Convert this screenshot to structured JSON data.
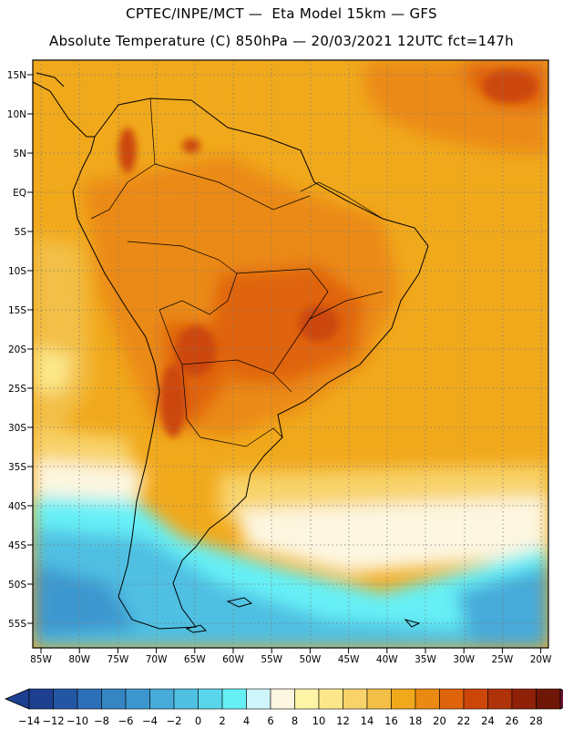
{
  "header": {
    "line1": "CPTEC/INPE/MCT —  Eta Model 15km — GFS",
    "line2": "Absolute Temperature (C) 850hPa — 20/03/2021 12UTC fct=147h"
  },
  "map": {
    "lat_labels": [
      "15N",
      "10N",
      "5N",
      "EQ",
      "5S",
      "10S",
      "15S",
      "20S",
      "25S",
      "30S",
      "35S",
      "40S",
      "45S",
      "50S",
      "55S"
    ],
    "lon_labels": [
      "85W",
      "80W",
      "75W",
      "70W",
      "65W",
      "60W",
      "55W",
      "50W",
      "45W",
      "40W",
      "35W",
      "30W",
      "25W",
      "20W"
    ]
  },
  "colorbar": {
    "labels": [
      "-14",
      "-12",
      "-10",
      "-8",
      "-6",
      "-4",
      "-2",
      "0",
      "2",
      "4",
      "6",
      "8",
      "10",
      "12",
      "14",
      "16",
      "18",
      "20",
      "22",
      "24",
      "26",
      "28"
    ],
    "colors": [
      "#1d3f8f",
      "#2457a3",
      "#2d6fb6",
      "#3585c3",
      "#3d97cf",
      "#47aad9",
      "#4fbfe2",
      "#5ad6ec",
      "#66f0f6",
      "#cff6fb",
      "#fdf6e0",
      "#fdf4a6",
      "#fce88a",
      "#f8d36a",
      "#f3bf46",
      "#f1a91c",
      "#eb8a12",
      "#e0640b",
      "#cc460a",
      "#b03209",
      "#8f2108",
      "#6e1707"
    ]
  }
}
